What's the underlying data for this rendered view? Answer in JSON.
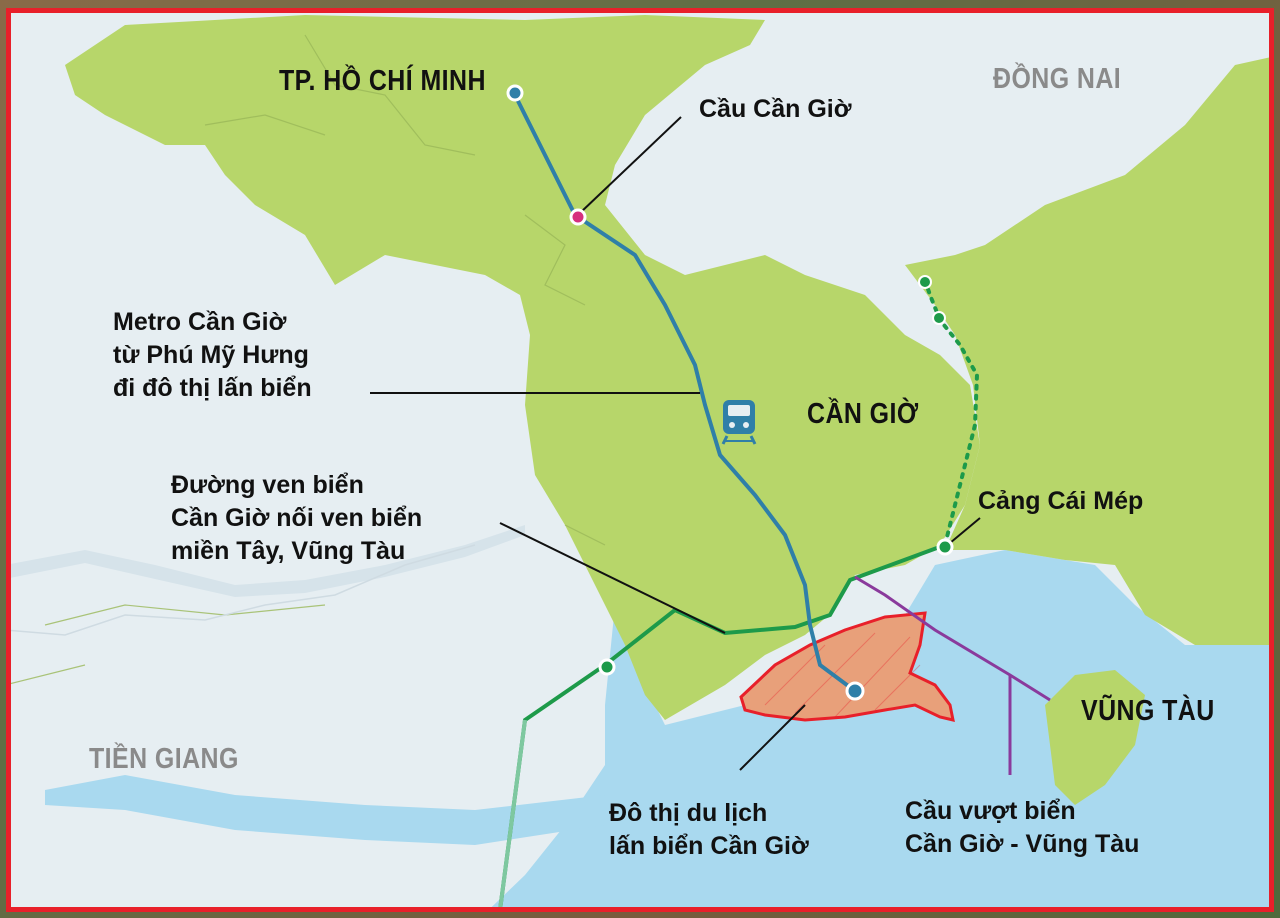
{
  "map": {
    "regions": {
      "hcmc": "TP. HỒ CHÍ MINH",
      "dong_nai": "ĐỒNG NAI",
      "can_gio": "CẦN GIỜ",
      "vung_tau": "VŨNG TÀU",
      "tien_giang": "TIỀN GIANG"
    },
    "callouts": {
      "cau_can_gio": "Cầu Cần Giờ",
      "metro": [
        "Metro Cần Giờ",
        "từ Phú Mỹ Hưng",
        "đi đô thị lấn biển"
      ],
      "coastal_road": [
        "Đường ven biển",
        "Cần Giờ nối ven biển",
        "miền Tây, Vũng Tàu"
      ],
      "cai_mep": "Cảng Cái Mép",
      "urban_area": [
        "Đô thị du lịch",
        "lấn biển Cần Giờ"
      ],
      "sea_bridge": [
        "Cầu vượt biển",
        "Cần Giờ - Vũng Tàu"
      ]
    },
    "icons": [
      "train-icon"
    ],
    "colors": {
      "land": "#b7d66a",
      "water": "#a9d9ef",
      "metro_line": "#2f7fa8",
      "coastal_road": "#1d9a4a",
      "sea_bridge": "#8a3a9c",
      "urban_area_outline": "#e8202a",
      "frame": "#e8202a"
    }
  }
}
